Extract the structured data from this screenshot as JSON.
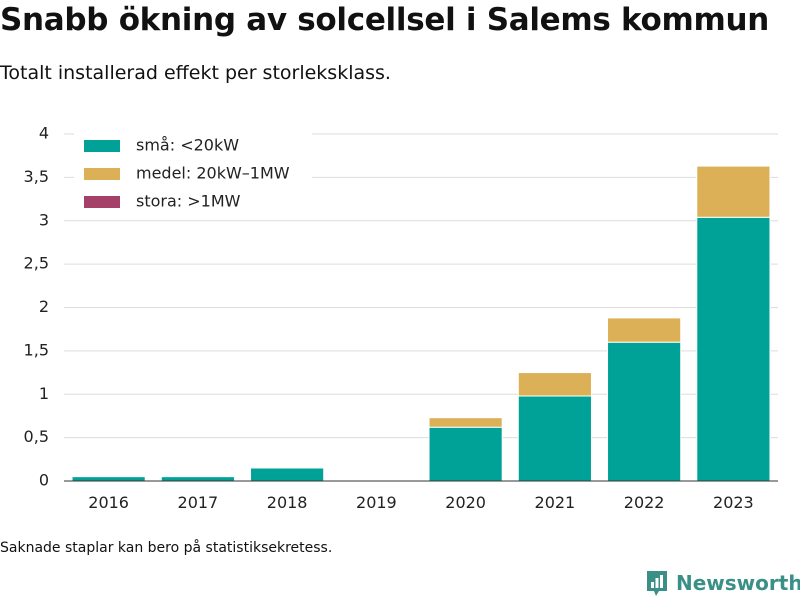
{
  "title": "Snabb ökning av solcellsel i Salems kommun",
  "subtitle": "Totalt installerad effekt per storleksklass.",
  "footnote": "Saknade staplar kan bero på statistiksekretess.",
  "brand": {
    "name": "Newsworthy",
    "color": "#3a8f86",
    "icon": "bar-chart-logo-icon"
  },
  "chart_data": {
    "type": "bar",
    "stacked": true,
    "categories": [
      "2016",
      "2017",
      "2018",
      "2019",
      "2020",
      "2021",
      "2022",
      "2023"
    ],
    "series": [
      {
        "name": "små: <20kW",
        "color": "#00a298",
        "values": [
          0.05,
          0.05,
          0.15,
          0,
          0.62,
          0.98,
          1.6,
          3.04
        ]
      },
      {
        "name": "medel: 20kW–1MW",
        "color": "#dcb057",
        "values": [
          0,
          0,
          0,
          0,
          0.11,
          0.27,
          0.28,
          0.59
        ]
      },
      {
        "name": "stora: >1MW",
        "color": "#a54069",
        "values": [
          0,
          0,
          0,
          0,
          0,
          0,
          0,
          0
        ]
      }
    ],
    "ylim": [
      0,
      4
    ],
    "yticks": [
      0,
      0.5,
      1,
      1.5,
      2,
      2.5,
      3,
      3.5,
      4
    ],
    "ytick_labels": [
      "0",
      "0,5",
      "1",
      "1,5",
      "2",
      "2,5",
      "3",
      "3,5",
      "4"
    ],
    "xlabel": "",
    "ylabel": "",
    "grid": true,
    "legend": "top-left"
  }
}
